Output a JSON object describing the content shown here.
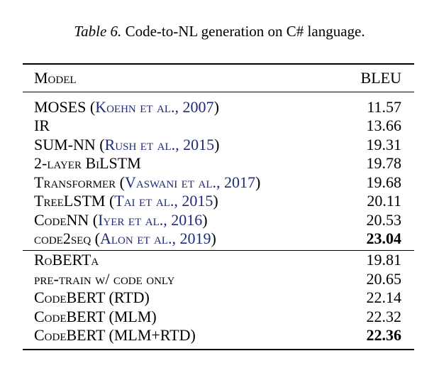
{
  "caption": {
    "label": "Table 6.",
    "text": "Code-to-NL generation on C# language."
  },
  "header": {
    "model": "Model",
    "score": "BLEU"
  },
  "rows": [
    {
      "model": "MOSES",
      "cite": "Koehn et al., 2007",
      "score": "11.57"
    },
    {
      "model": "IR",
      "cite": "",
      "score": "13.66"
    },
    {
      "model": "SUM-NN",
      "cite": "Rush et al., 2015",
      "score": "19.31"
    },
    {
      "model": "2-layer BiLSTM",
      "cite": "",
      "score": "19.78"
    },
    {
      "model": "Transformer",
      "cite": "Vaswani et al., 2017",
      "score": "19.68"
    },
    {
      "model": "TreeLSTM",
      "cite": "Tai et al., 2015",
      "score": "20.11"
    },
    {
      "model": "CodeNN",
      "cite": "Iyer et al., 2016",
      "score": "20.53"
    },
    {
      "model": "code2seq",
      "cite": "Alon et al., 2019",
      "score": "23.04",
      "bold": true
    },
    {
      "model": "RoBERTa",
      "cite": "",
      "score": "19.81"
    },
    {
      "model": "pre-train w/ code only",
      "cite": "",
      "score": "20.65"
    },
    {
      "model": "CodeBERT (RTD)",
      "cite": "",
      "score": "22.14"
    },
    {
      "model": "CodeBERT (MLM)",
      "cite": "",
      "score": "22.32"
    },
    {
      "model": "CodeBERT (MLM+RTD)",
      "cite": "",
      "score": "22.36",
      "bold": true
    }
  ]
}
